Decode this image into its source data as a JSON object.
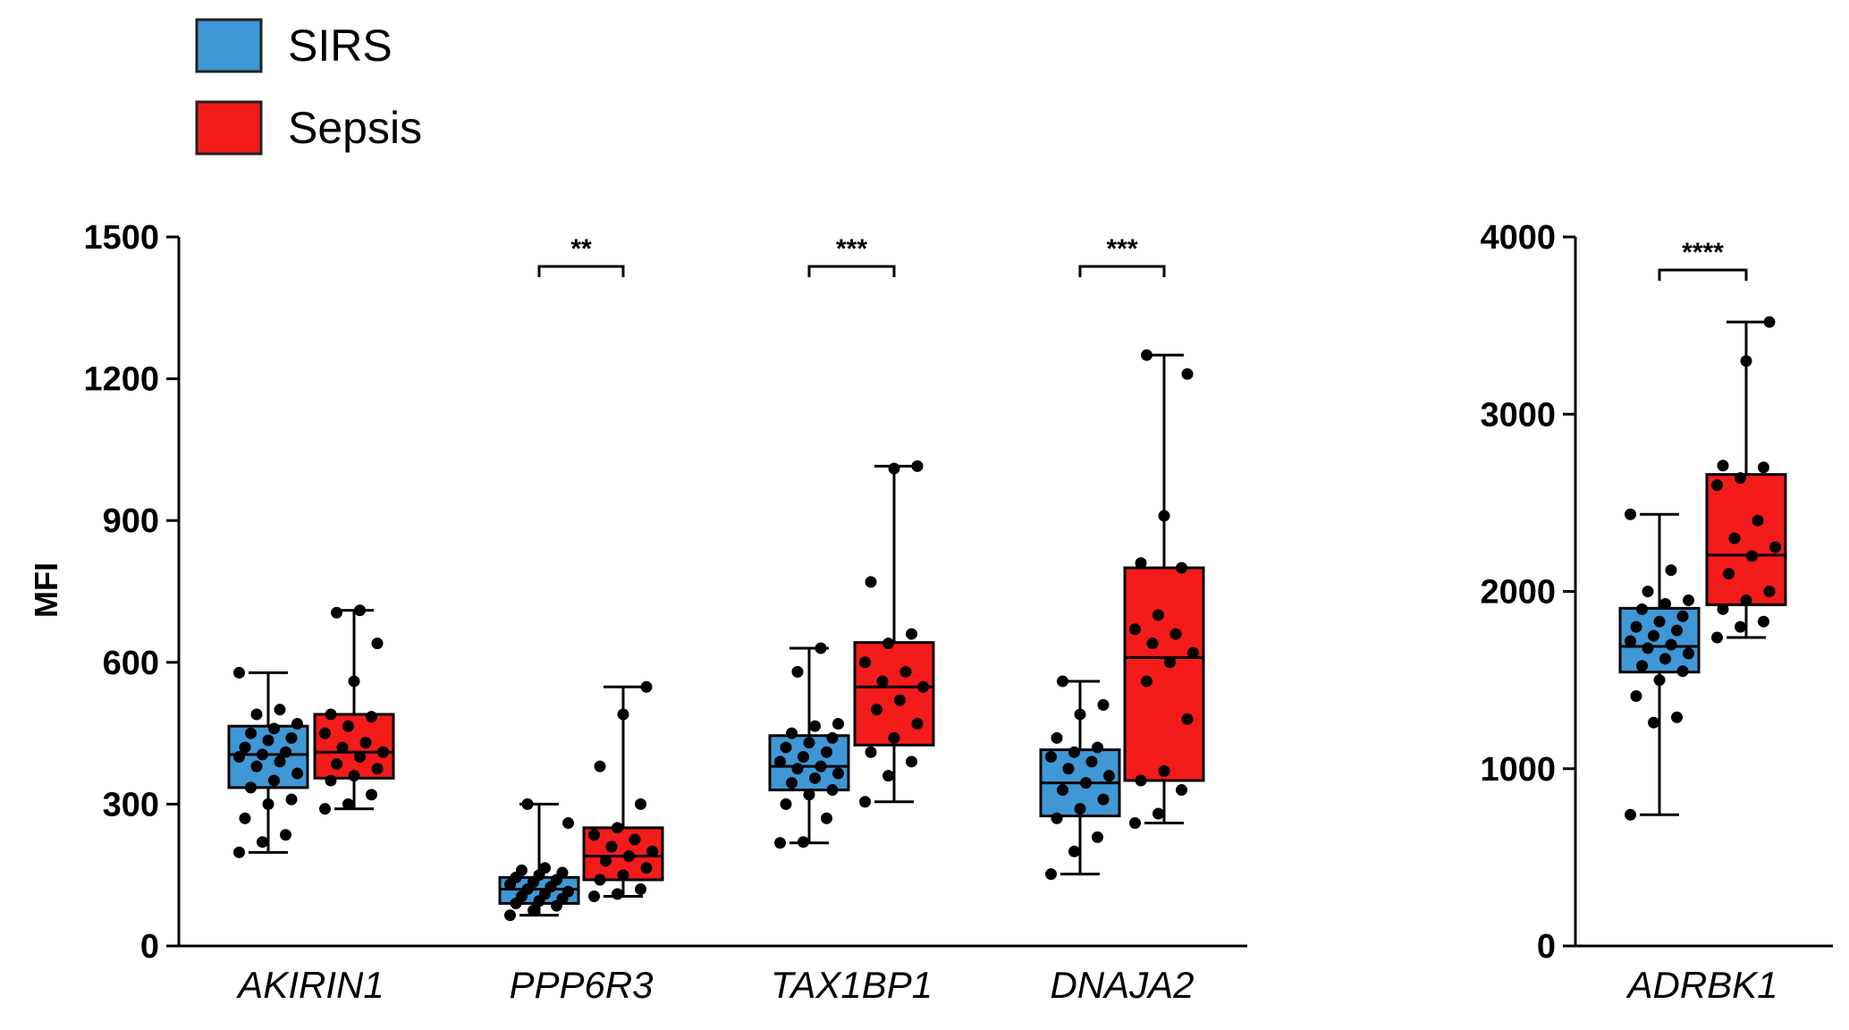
{
  "legend": [
    {
      "name": "SIRS",
      "color": "#3f97d5"
    },
    {
      "name": "Sepsis",
      "color": "#f41b1b"
    }
  ],
  "chart_data": [
    {
      "type": "box",
      "ylabel": "MFI",
      "ylim": [
        0,
        1500
      ],
      "yticks": [
        0,
        300,
        600,
        900,
        1200,
        1500
      ],
      "categories": [
        "AKIRIN1",
        "PPP6R3",
        "TAX1BP1",
        "DNAJA2"
      ],
      "groups": [
        {
          "category": "AKIRIN1",
          "significance": "",
          "boxes": [
            {
              "series": "SIRS",
              "min": 198,
              "q1": 335,
              "median": 405,
              "q3": 465,
              "max": 578,
              "points": [
                198,
                220,
                235,
                270,
                300,
                310,
                335,
                350,
                365,
                380,
                390,
                400,
                405,
                410,
                420,
                435,
                440,
                450,
                460,
                470,
                490,
                500,
                578
              ]
            },
            {
              "series": "Sepsis",
              "min": 290,
              "q1": 355,
              "median": 410,
              "q3": 490,
              "max": 710,
              "points": [
                290,
                300,
                320,
                350,
                360,
                375,
                385,
                400,
                410,
                420,
                430,
                450,
                465,
                485,
                490,
                560,
                640,
                705,
                710
              ]
            }
          ]
        },
        {
          "category": "PPP6R3",
          "significance": "**",
          "boxes": [
            {
              "series": "SIRS",
              "min": 65,
              "q1": 90,
              "median": 120,
              "q3": 145,
              "max": 300,
              "points": [
                65,
                75,
                85,
                90,
                95,
                100,
                105,
                110,
                115,
                120,
                125,
                130,
                135,
                140,
                145,
                150,
                155,
                160,
                165,
                260,
                300
              ]
            },
            {
              "series": "Sepsis",
              "min": 105,
              "q1": 140,
              "median": 190,
              "q3": 250,
              "max": 548,
              "points": [
                105,
                110,
                120,
                140,
                150,
                165,
                180,
                190,
                200,
                210,
                225,
                235,
                250,
                300,
                380,
                490,
                548
              ]
            }
          ]
        },
        {
          "category": "TAX1BP1",
          "significance": "***",
          "boxes": [
            {
              "series": "SIRS",
              "min": 218,
              "q1": 330,
              "median": 380,
              "q3": 445,
              "max": 630,
              "points": [
                218,
                220,
                270,
                300,
                320,
                330,
                345,
                355,
                365,
                375,
                380,
                390,
                400,
                410,
                420,
                430,
                440,
                450,
                465,
                470,
                580,
                630
              ]
            },
            {
              "series": "Sepsis",
              "min": 305,
              "q1": 425,
              "median": 548,
              "q3": 642,
              "max": 1015,
              "points": [
                305,
                360,
                390,
                410,
                440,
                470,
                500,
                520,
                548,
                560,
                580,
                600,
                640,
                660,
                770,
                1010,
                1015
              ]
            }
          ]
        },
        {
          "category": "DNAJA2",
          "significance": "***",
          "boxes": [
            {
              "series": "SIRS",
              "min": 152,
              "q1": 275,
              "median": 345,
              "q3": 415,
              "max": 560,
              "points": [
                152,
                200,
                230,
                270,
                290,
                310,
                330,
                345,
                360,
                375,
                390,
                400,
                410,
                420,
                440,
                490,
                510,
                560
              ]
            },
            {
              "series": "Sepsis",
              "min": 260,
              "q1": 350,
              "median": 610,
              "q3": 800,
              "max": 1250,
              "points": [
                260,
                280,
                330,
                350,
                370,
                480,
                560,
                600,
                620,
                640,
                660,
                670,
                700,
                800,
                810,
                910,
                1210,
                1250
              ]
            }
          ]
        }
      ]
    },
    {
      "type": "box",
      "ylabel": "",
      "ylim": [
        0,
        4000
      ],
      "yticks": [
        0,
        1000,
        2000,
        3000,
        4000
      ],
      "categories": [
        "ADRBK1"
      ],
      "groups": [
        {
          "category": "ADRBK1",
          "significance": "****",
          "boxes": [
            {
              "series": "SIRS",
              "min": 740,
              "q1": 1545,
              "median": 1690,
              "q3": 1905,
              "max": 2435,
              "points": [
                740,
                1260,
                1290,
                1410,
                1500,
                1550,
                1580,
                1620,
                1650,
                1680,
                1700,
                1720,
                1750,
                1780,
                1800,
                1830,
                1860,
                1900,
                1930,
                1950,
                2000,
                2120,
                2435
              ]
            },
            {
              "series": "Sepsis",
              "min": 1740,
              "q1": 1925,
              "median": 2205,
              "q3": 2660,
              "max": 3520,
              "points": [
                1740,
                1800,
                1830,
                1900,
                1950,
                2000,
                2100,
                2200,
                2250,
                2300,
                2400,
                2600,
                2640,
                2700,
                2710,
                3300,
                3520
              ]
            }
          ]
        }
      ]
    }
  ]
}
